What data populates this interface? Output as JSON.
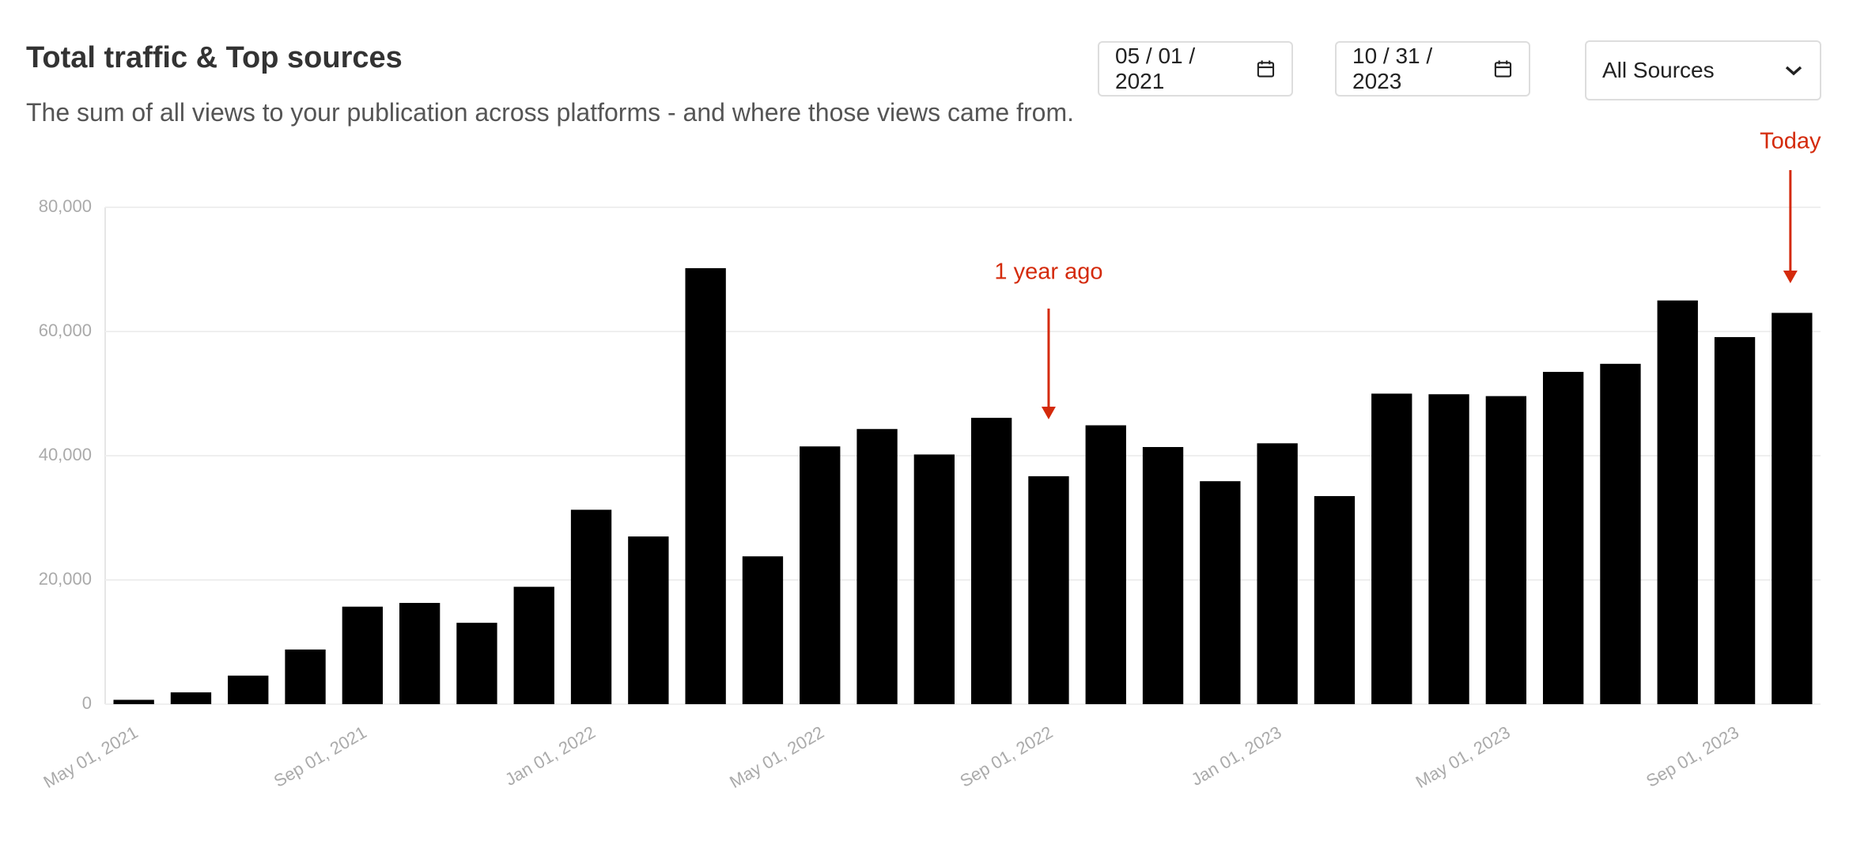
{
  "chart_data": {
    "type": "bar",
    "title": "Total traffic & Top sources",
    "subtitle": "The sum of all views to your publication across platforms - and where those views came from.",
    "categories": [
      "May 01, 2021",
      null,
      null,
      null,
      "Sep 01, 2021",
      null,
      null,
      null,
      "Jan 01, 2022",
      null,
      null,
      null,
      "May 01, 2022",
      null,
      null,
      null,
      "Sep 01, 2022",
      null,
      null,
      null,
      "Jan 01, 2023",
      null,
      null,
      null,
      "May 01, 2023",
      null,
      null,
      null,
      "Sep 01, 2023",
      null
    ],
    "values": [
      700,
      1900,
      4600,
      8800,
      15700,
      16300,
      13100,
      18900,
      31300,
      27000,
      70200,
      23800,
      41500,
      44300,
      40200,
      46100,
      36700,
      44900,
      41400,
      35900,
      42000,
      33500,
      50000,
      49900,
      49600,
      53500,
      54800,
      65000,
      59100,
      63000
    ],
    "color": "#000000",
    "ylim": [
      0,
      80000
    ],
    "yticks": [
      0,
      {
        "value": 20000,
        "label": "20,000"
      },
      {
        "value": 40000,
        "label": "40,000"
      },
      {
        "value": 60000,
        "label": "60,000"
      },
      {
        "value": 80000,
        "label": "80,000"
      }
    ],
    "grid": true,
    "annotations": [
      "1 year ago",
      "Today"
    ]
  },
  "controls": {
    "start_date": "05 / 01 / 2021",
    "end_date": "10 / 31 / 2023",
    "source": "All Sources"
  }
}
